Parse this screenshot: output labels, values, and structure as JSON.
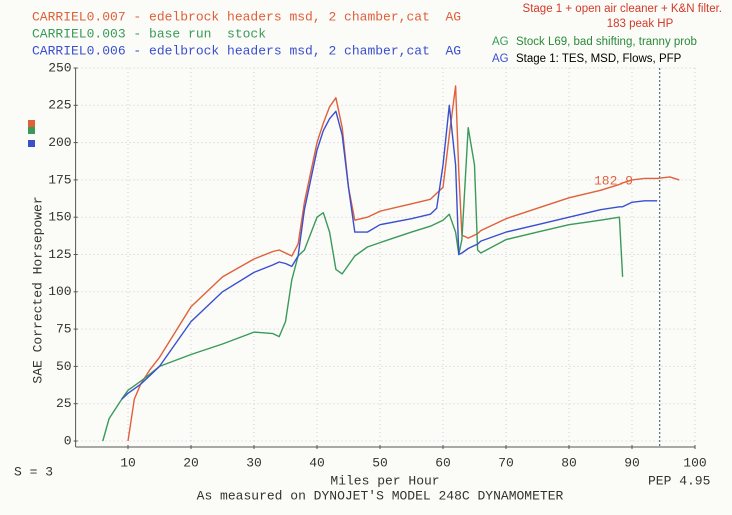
{
  "chart_data": {
    "type": "line",
    "legend_lines": [],
    "x_label": "Miles per Hour",
    "y_label": "SAE Corrected Horsepower",
    "footer": "As measured on DYNOJET'S MODEL 248C DYNAMOMETER",
    "smoothing": "S = 3",
    "version": "PEP 4.95",
    "annotations": [
      "182.9"
    ],
    "notes": [
      "Stage 1 + open air cleaner + K&N filter.",
      "183 peak HP",
      "AG",
      "Stock L69, bad shifting, tranny prob",
      "AG",
      "Stage 1: TES, MSD, Flows, PFP"
    ],
    "x": [
      6,
      7,
      9,
      10,
      11,
      12,
      13.5,
      15,
      20,
      25,
      30,
      33,
      34,
      35,
      36,
      37,
      38,
      40,
      41,
      42,
      43,
      44,
      45,
      46,
      48,
      50,
      55,
      58,
      59,
      60,
      61,
      62,
      62.5,
      63,
      64,
      65,
      65.5,
      66,
      70,
      75,
      80,
      85,
      88,
      88.5,
      90,
      92,
      94,
      96,
      97.5
    ],
    "series": [
      {
        "name": "CARRIEL0.007 - edelbrock headers msd, 2 chamber,cat  AG",
        "color": "#e0603a",
        "values": [
          null,
          null,
          null,
          0,
          28,
          38,
          48,
          56,
          90,
          110,
          122,
          127,
          128,
          126,
          124,
          132,
          160,
          200,
          213,
          224,
          230,
          210,
          170,
          148,
          150,
          154,
          159,
          162,
          166,
          170,
          205,
          238,
          180,
          138,
          136,
          138,
          139,
          141,
          149,
          156,
          163,
          168,
          172,
          173,
          175,
          176,
          176,
          177,
          175
        ]
      },
      {
        "name": "CARRIEL0.003 - base run  stock",
        "color": "#3a9a5a",
        "values": [
          0,
          15,
          28,
          34,
          37,
          40,
          45,
          50,
          58,
          65,
          73,
          72,
          70,
          80,
          108,
          124,
          128,
          150,
          153,
          140,
          115,
          112,
          118,
          124,
          130,
          133,
          140,
          144,
          146,
          148,
          152,
          140,
          125,
          135,
          210,
          185,
          128,
          126,
          135,
          140,
          145,
          148,
          150,
          110,
          null,
          null,
          null,
          null,
          null
        ]
      },
      {
        "name": "CARRIEL0.006 - edelbrock headers msd, 2 chamber,cat  AG",
        "color": "#3a4fd0",
        "values": [
          null,
          null,
          28,
          32,
          35,
          38,
          44,
          50,
          80,
          100,
          113,
          118,
          120,
          119,
          117,
          124,
          155,
          195,
          208,
          216,
          221,
          205,
          170,
          140,
          140,
          145,
          149,
          152,
          156,
          185,
          225,
          185,
          125,
          126,
          129,
          131,
          132,
          134,
          140,
          145,
          150,
          155,
          157,
          157,
          160,
          161,
          161,
          null,
          null
        ]
      }
    ],
    "reference_x": 94.4,
    "xlim": [
      2,
      100
    ],
    "xticks": [
      10,
      20,
      30,
      40,
      50,
      60,
      70,
      80,
      90,
      100
    ],
    "ylim": [
      0,
      250
    ],
    "yticks": [
      0,
      25,
      50,
      75,
      100,
      125,
      150,
      175,
      200,
      225,
      250
    ],
    "grid": true
  }
}
